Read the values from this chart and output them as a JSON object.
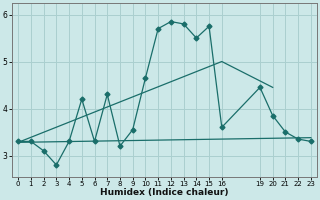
{
  "title": "",
  "xlabel": "Humidex (Indice chaleur)",
  "background_color": "#cce8e8",
  "grid_color": "#aacfcf",
  "line_color": "#1a6e6a",
  "xlim": [
    -0.5,
    23.5
  ],
  "ylim": [
    2.55,
    6.25
  ],
  "xticks": [
    0,
    1,
    2,
    3,
    4,
    5,
    6,
    7,
    8,
    9,
    10,
    11,
    12,
    13,
    14,
    15,
    16,
    19,
    20,
    21,
    22,
    23
  ],
  "yticks": [
    3,
    4,
    5,
    6
  ],
  "line1_x": [
    0,
    1,
    2,
    3,
    4,
    5,
    6,
    7,
    8,
    9,
    10,
    11,
    12,
    13,
    14,
    15,
    16,
    19,
    20,
    21,
    22,
    23
  ],
  "line1_y": [
    3.3,
    3.3,
    3.1,
    2.8,
    3.3,
    4.2,
    3.3,
    4.3,
    3.2,
    3.55,
    4.65,
    5.7,
    5.85,
    5.8,
    5.5,
    5.75,
    3.6,
    4.45,
    3.85,
    3.5,
    3.35,
    3.3
  ],
  "line2_x": [
    0,
    23
  ],
  "line2_y": [
    3.28,
    3.38
  ],
  "line3_x": [
    0,
    16,
    20
  ],
  "line3_y": [
    3.28,
    5.0,
    4.45
  ]
}
